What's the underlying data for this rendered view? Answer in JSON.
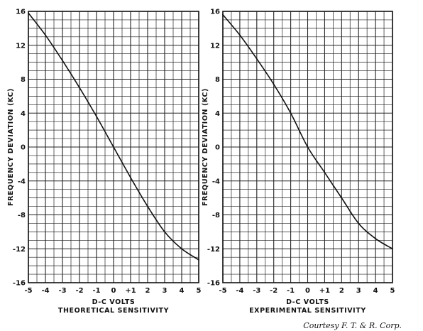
{
  "chart_data": [
    {
      "type": "line",
      "title": "",
      "xlabel": "D-C VOLTS",
      "subtitle": "THEORETICAL SENSITIVITY",
      "ylabel": "FREQUENCY DEVIATION (KC)",
      "xlim": [
        -5,
        5
      ],
      "ylim": [
        -16,
        16
      ],
      "x_ticks": [
        "-5",
        "-4",
        "-3",
        "-2",
        "-1",
        "0",
        "+1",
        "2",
        "3",
        "4",
        "5"
      ],
      "y_ticks": [
        "16",
        "12",
        "8",
        "4",
        "0",
        "-4",
        "-8",
        "-12",
        "-16"
      ],
      "grid": true,
      "series": [
        {
          "x": [
            -5,
            -4,
            -3,
            -2,
            -1,
            0,
            1,
            2,
            3,
            4,
            5
          ],
          "y": [
            15.8,
            13.2,
            10.2,
            7.0,
            3.6,
            0.0,
            -3.6,
            -7.0,
            -10.0,
            -12.0,
            -13.3
          ]
        }
      ]
    },
    {
      "type": "line",
      "title": "",
      "xlabel": "D-C VOLTS",
      "subtitle": "EXPERIMENTAL SENSITIVITY",
      "ylabel": "FREQUENCY DEVIATION (KC)",
      "xlim": [
        -5,
        5
      ],
      "ylim": [
        -16,
        16
      ],
      "x_ticks": [
        "-5",
        "-4",
        "-3",
        "-2",
        "-1",
        "0",
        "+1",
        "2",
        "3",
        "4",
        "5"
      ],
      "y_ticks": [
        "16",
        "12",
        "8",
        "4",
        "0",
        "-4",
        "-8",
        "-12",
        "-16"
      ],
      "grid": true,
      "series": [
        {
          "x": [
            -5,
            -4,
            -3,
            -2,
            -1,
            0,
            1,
            2,
            3,
            4,
            5
          ],
          "y": [
            15.6,
            13.2,
            10.4,
            7.4,
            4.0,
            0.0,
            -3.0,
            -6.0,
            -9.0,
            -10.8,
            -12.0
          ]
        }
      ]
    }
  ],
  "credit": "Courtesy F. T. & R. Corp."
}
